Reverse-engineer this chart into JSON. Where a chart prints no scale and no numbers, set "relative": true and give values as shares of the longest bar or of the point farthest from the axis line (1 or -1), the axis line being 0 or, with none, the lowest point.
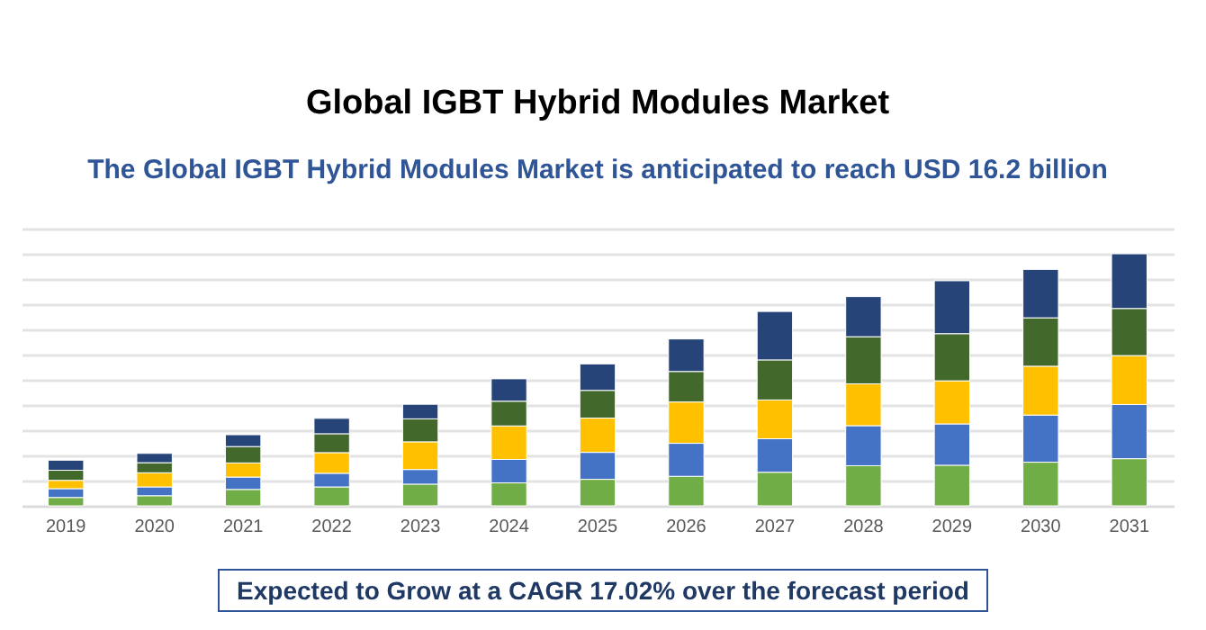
{
  "chart_data": {
    "type": "bar",
    "title": "Global IGBT Hybrid Modules Market",
    "subtitle": "The Global IGBT Hybrid Modules  Market is anticipated to reach USD 16.2 billion",
    "annotations": [
      "Expected to Grow at a CAGR 17.02% over the forecast period"
    ],
    "categories": [
      "2019",
      "2020",
      "2021",
      "2022",
      "2023",
      "2024",
      "2025",
      "2026",
      "2027",
      "2028",
      "2029",
      "2030",
      "2031"
    ],
    "stacked": true,
    "relative": true,
    "grid": "y",
    "series": [
      {
        "color": "#70ad47",
        "values": [
          0.033,
          0.04,
          0.065,
          0.075,
          0.086,
          0.091,
          0.105,
          0.117,
          0.133,
          0.159,
          0.161,
          0.173,
          0.187
        ]
      },
      {
        "color": "#4472c4",
        "values": [
          0.035,
          0.035,
          0.049,
          0.054,
          0.058,
          0.093,
          0.107,
          0.131,
          0.133,
          0.159,
          0.164,
          0.187,
          0.215
        ]
      },
      {
        "color": "#ffc000",
        "values": [
          0.033,
          0.056,
          0.056,
          0.082,
          0.11,
          0.133,
          0.136,
          0.164,
          0.154,
          0.166,
          0.171,
          0.194,
          0.194
        ]
      },
      {
        "color": "#43682b",
        "values": [
          0.04,
          0.04,
          0.065,
          0.075,
          0.091,
          0.098,
          0.11,
          0.121,
          0.159,
          0.187,
          0.187,
          0.192,
          0.187
        ]
      },
      {
        "color": "#264478",
        "values": [
          0.04,
          0.037,
          0.047,
          0.061,
          0.058,
          0.089,
          0.105,
          0.129,
          0.192,
          0.159,
          0.21,
          0.192,
          0.217
        ]
      }
    ]
  }
}
